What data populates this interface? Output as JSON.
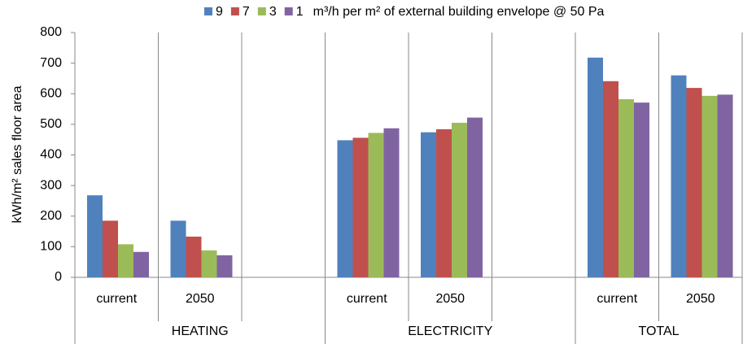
{
  "chart_data": {
    "type": "bar",
    "y_label": "kWh/m² sales floor area",
    "legend_title": "m³/h per m² of external building envelope @ 50 Pa",
    "categories": [
      "current",
      "2050",
      null,
      "current",
      "2050",
      null,
      "current",
      "2050"
    ],
    "groups": [
      "HEATING",
      "ELECTRICITY",
      "TOTAL"
    ],
    "series": [
      {
        "name": "9",
        "color": "#4f81bd",
        "values": [
          268,
          185,
          null,
          448,
          474,
          null,
          718,
          660
        ]
      },
      {
        "name": "7",
        "color": "#c0504d",
        "values": [
          185,
          133,
          null,
          456,
          484,
          null,
          641,
          619
        ]
      },
      {
        "name": "3",
        "color": "#9bbb59",
        "values": [
          108,
          88,
          null,
          472,
          505,
          null,
          582,
          593
        ]
      },
      {
        "name": "1",
        "color": "#8064a2",
        "values": [
          83,
          72,
          null,
          487,
          522,
          null,
          571,
          597
        ]
      }
    ],
    "ylim": [
      0,
      800
    ],
    "yticks": [
      0,
      100,
      200,
      300,
      400,
      500,
      600,
      700,
      800
    ],
    "legend_position": "top"
  }
}
